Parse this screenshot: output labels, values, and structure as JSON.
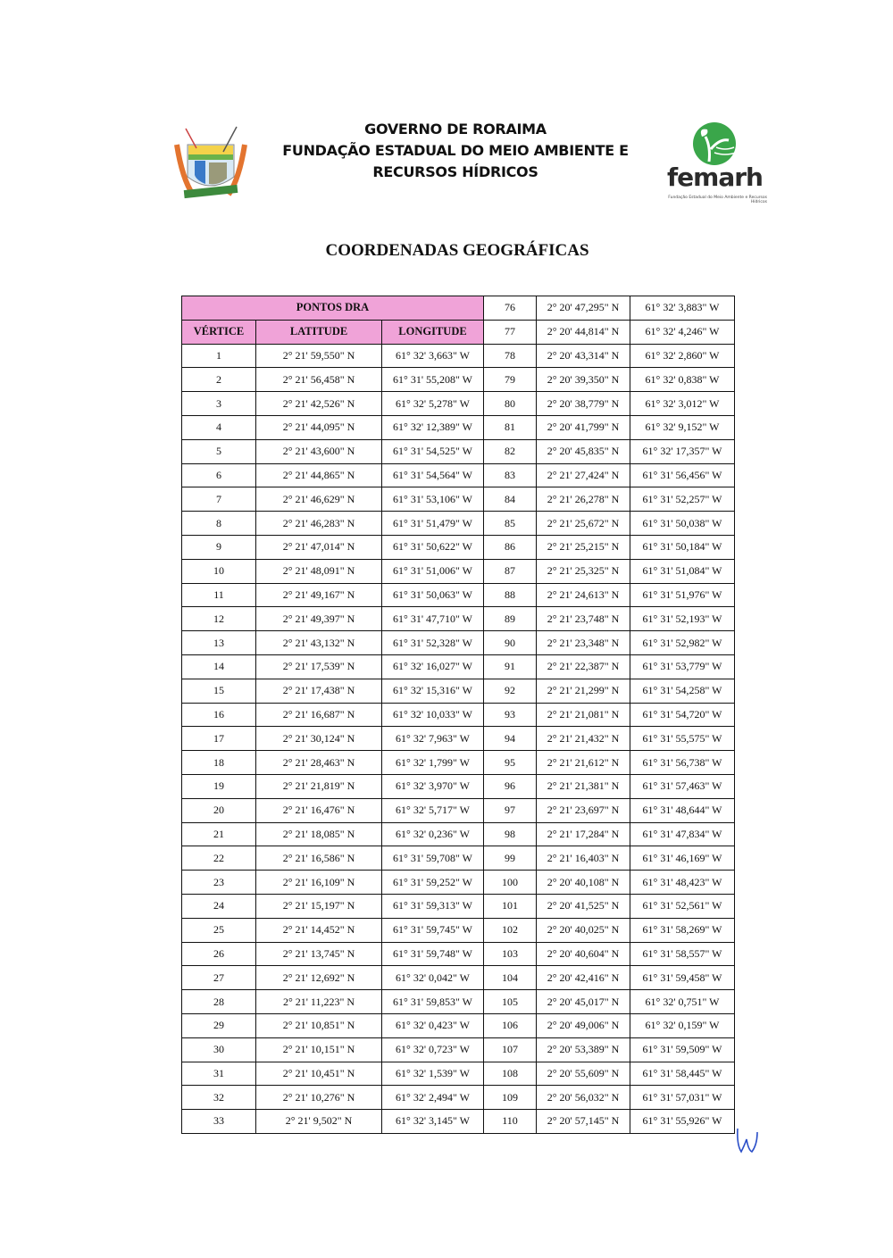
{
  "header": {
    "line1": "GOVERNO DE RORAIMA",
    "line2": "FUNDAÇÃO ESTADUAL DO MEIO AMBIENTE E",
    "line3": "RECURSOS HÍDRICOS"
  },
  "logo": {
    "name": "femarh",
    "subtitle": "Fundação Estadual do Meio Ambiente e Recursos Hídricos",
    "brand_color": "#3aa64a"
  },
  "title": "COORDENADAS GEOGRÁFICAS",
  "table": {
    "group_header": "PONTOS DRA",
    "columns": [
      "VÉRTICE",
      "LATITUDE",
      "LONGITUDE"
    ],
    "header_color": "#f0a3d8",
    "left_rows": [
      [
        "1",
        "2° 21' 59,550\" N",
        "61° 32' 3,663\" W"
      ],
      [
        "2",
        "2° 21' 56,458\" N",
        "61° 31' 55,208\" W"
      ],
      [
        "3",
        "2° 21' 42,526\" N",
        "61° 32' 5,278\" W"
      ],
      [
        "4",
        "2° 21' 44,095\" N",
        "61° 32' 12,389\" W"
      ],
      [
        "5",
        "2° 21' 43,600\" N",
        "61° 31' 54,525\" W"
      ],
      [
        "6",
        "2° 21' 44,865\" N",
        "61° 31' 54,564\" W"
      ],
      [
        "7",
        "2° 21' 46,629\" N",
        "61° 31' 53,106\" W"
      ],
      [
        "8",
        "2° 21' 46,283\" N",
        "61° 31' 51,479\" W"
      ],
      [
        "9",
        "2° 21' 47,014\" N",
        "61° 31' 50,622\" W"
      ],
      [
        "10",
        "2° 21' 48,091\" N",
        "61° 31' 51,006\" W"
      ],
      [
        "11",
        "2° 21' 49,167\" N",
        "61° 31' 50,063\" W"
      ],
      [
        "12",
        "2° 21' 49,397\" N",
        "61° 31' 47,710\" W"
      ],
      [
        "13",
        "2° 21' 43,132\" N",
        "61° 31' 52,328\" W"
      ],
      [
        "14",
        "2° 21' 17,539\" N",
        "61° 32' 16,027\" W"
      ],
      [
        "15",
        "2° 21' 17,438\" N",
        "61° 32' 15,316\" W"
      ],
      [
        "16",
        "2° 21' 16,687\" N",
        "61° 32' 10,033\" W"
      ],
      [
        "17",
        "2° 21' 30,124\" N",
        "61° 32' 7,963\" W"
      ],
      [
        "18",
        "2° 21' 28,463\" N",
        "61° 32' 1,799\" W"
      ],
      [
        "19",
        "2° 21' 21,819\" N",
        "61° 32' 3,970\" W"
      ],
      [
        "20",
        "2° 21' 16,476\" N",
        "61° 32' 5,717\" W"
      ],
      [
        "21",
        "2° 21' 18,085\" N",
        "61° 32' 0,236\" W"
      ],
      [
        "22",
        "2° 21' 16,586\" N",
        "61° 31' 59,708\" W"
      ],
      [
        "23",
        "2° 21' 16,109\" N",
        "61° 31' 59,252\" W"
      ],
      [
        "24",
        "2° 21' 15,197\" N",
        "61° 31' 59,313\" W"
      ],
      [
        "25",
        "2° 21' 14,452\" N",
        "61° 31' 59,745\" W"
      ],
      [
        "26",
        "2° 21' 13,745\" N",
        "61° 31' 59,748\" W"
      ],
      [
        "27",
        "2° 21' 12,692\" N",
        "61° 32' 0,042\" W"
      ],
      [
        "28",
        "2° 21' 11,223\" N",
        "61° 31' 59,853\" W"
      ],
      [
        "29",
        "2° 21' 10,851\" N",
        "61° 32' 0,423\" W"
      ],
      [
        "30",
        "2° 21' 10,151\" N",
        "61° 32' 0,723\" W"
      ],
      [
        "31",
        "2° 21' 10,451\" N",
        "61° 32' 1,539\" W"
      ],
      [
        "32",
        "2° 21' 10,276\" N",
        "61° 32' 2,494\" W"
      ],
      [
        "33",
        "2° 21' 9,502\" N",
        "61° 32' 3,145\" W"
      ]
    ],
    "right_rows": [
      [
        "76",
        "2° 20' 47,295\" N",
        "61° 32' 3,883\" W"
      ],
      [
        "77",
        "2° 20' 44,814\" N",
        "61° 32' 4,246\" W"
      ],
      [
        "78",
        "2° 20' 43,314\" N",
        "61° 32' 2,860\" W"
      ],
      [
        "79",
        "2° 20' 39,350\" N",
        "61° 32' 0,838\" W"
      ],
      [
        "80",
        "2° 20' 38,779\" N",
        "61° 32' 3,012\" W"
      ],
      [
        "81",
        "2° 20' 41,799\" N",
        "61° 32' 9,152\" W"
      ],
      [
        "82",
        "2° 20' 45,835\" N",
        "61° 32' 17,357\" W"
      ],
      [
        "83",
        "2° 21' 27,424\" N",
        "61° 31' 56,456\" W"
      ],
      [
        "84",
        "2° 21' 26,278\" N",
        "61° 31' 52,257\" W"
      ],
      [
        "85",
        "2° 21' 25,672\" N",
        "61° 31' 50,038\" W"
      ],
      [
        "86",
        "2° 21' 25,215\" N",
        "61° 31' 50,184\" W"
      ],
      [
        "87",
        "2° 21' 25,325\" N",
        "61° 31' 51,084\" W"
      ],
      [
        "88",
        "2° 21' 24,613\" N",
        "61° 31' 51,976\" W"
      ],
      [
        "89",
        "2° 21' 23,748\" N",
        "61° 31' 52,193\" W"
      ],
      [
        "90",
        "2° 21' 23,348\" N",
        "61° 31' 52,982\" W"
      ],
      [
        "91",
        "2° 21' 22,387\" N",
        "61° 31' 53,779\" W"
      ],
      [
        "92",
        "2° 21' 21,299\" N",
        "61° 31' 54,258\" W"
      ],
      [
        "93",
        "2° 21' 21,081\" N",
        "61° 31' 54,720\" W"
      ],
      [
        "94",
        "2° 21' 21,432\" N",
        "61° 31' 55,575\" W"
      ],
      [
        "95",
        "2° 21' 21,612\" N",
        "61° 31' 56,738\" W"
      ],
      [
        "96",
        "2° 21' 21,381\" N",
        "61° 31' 57,463\" W"
      ],
      [
        "97",
        "2° 21' 23,697\" N",
        "61° 31' 48,644\" W"
      ],
      [
        "98",
        "2° 21' 17,284\" N",
        "61° 31' 47,834\" W"
      ],
      [
        "99",
        "2° 21' 16,403\" N",
        "61° 31' 46,169\" W"
      ],
      [
        "100",
        "2° 20' 40,108\" N",
        "61° 31' 48,423\" W"
      ],
      [
        "101",
        "2° 20' 41,525\" N",
        "61° 31' 52,561\" W"
      ],
      [
        "102",
        "2° 20' 40,025\" N",
        "61° 31' 58,269\" W"
      ],
      [
        "103",
        "2° 20' 40,604\" N",
        "61° 31' 58,557\" W"
      ],
      [
        "104",
        "2° 20' 42,416\" N",
        "61° 31' 59,458\" W"
      ],
      [
        "105",
        "2° 20' 45,017\" N",
        "61° 32' 0,751\" W"
      ],
      [
        "106",
        "2° 20' 49,006\" N",
        "61° 32' 0,159\" W"
      ],
      [
        "107",
        "2° 20' 53,389\" N",
        "61° 31' 59,509\" W"
      ],
      [
        "108",
        "2° 20' 55,609\" N",
        "61° 31' 58,445\" W"
      ],
      [
        "109",
        "2° 20' 56,032\" N",
        "61° 31' 57,031\" W"
      ],
      [
        "110",
        "2° 20' 57,145\" N",
        "61° 31' 55,926\" W"
      ]
    ]
  }
}
